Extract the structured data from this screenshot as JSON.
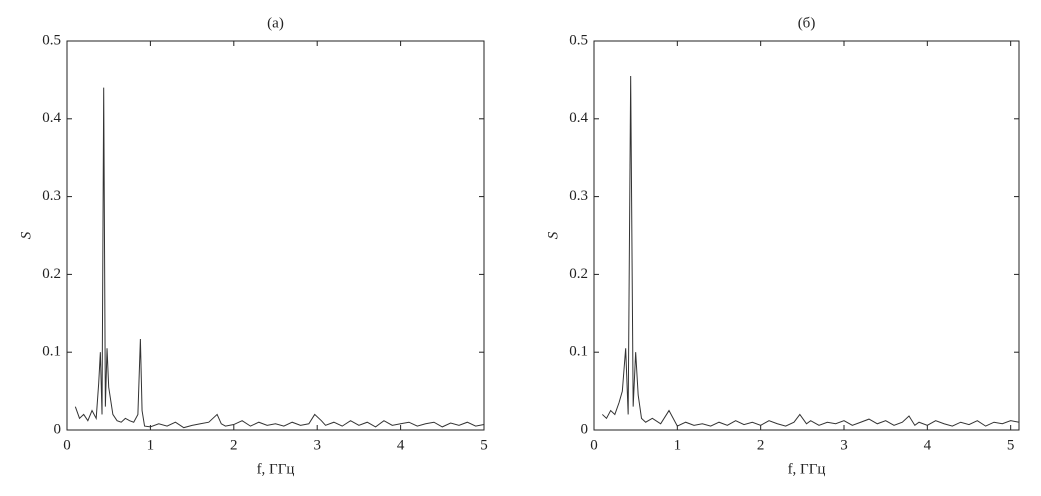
{
  "chart_data": [
    {
      "type": "line",
      "title": "(а)",
      "xlabel": "f, ГГц",
      "ylabel": "S",
      "xlim": [
        0,
        5
      ],
      "ylim": [
        0,
        0.5
      ],
      "xticks": [
        0,
        1,
        2,
        3,
        4,
        5
      ],
      "yticks": [
        0,
        0.1,
        0.2,
        0.3,
        0.4,
        0.5
      ],
      "x": [
        0.1,
        0.15,
        0.2,
        0.25,
        0.3,
        0.35,
        0.38,
        0.4,
        0.42,
        0.44,
        0.46,
        0.48,
        0.5,
        0.55,
        0.6,
        0.65,
        0.7,
        0.75,
        0.8,
        0.85,
        0.88,
        0.9,
        0.93,
        1.0,
        1.1,
        1.2,
        1.3,
        1.4,
        1.5,
        1.6,
        1.7,
        1.8,
        1.85,
        1.9,
        2.0,
        2.1,
        2.2,
        2.3,
        2.4,
        2.5,
        2.6,
        2.7,
        2.8,
        2.9,
        2.97,
        3.05,
        3.1,
        3.2,
        3.3,
        3.4,
        3.5,
        3.6,
        3.7,
        3.8,
        3.9,
        4.0,
        4.1,
        4.2,
        4.3,
        4.4,
        4.5,
        4.6,
        4.7,
        4.8,
        4.9,
        5.0
      ],
      "series": [
        {
          "color": "#333333",
          "values": [
            0.03,
            0.015,
            0.02,
            0.012,
            0.025,
            0.015,
            0.06,
            0.1,
            0.02,
            0.44,
            0.03,
            0.105,
            0.055,
            0.02,
            0.012,
            0.01,
            0.015,
            0.012,
            0.01,
            0.02,
            0.117,
            0.025,
            0.005,
            0.004,
            0.008,
            0.005,
            0.01,
            0.003,
            0.006,
            0.008,
            0.01,
            0.02,
            0.008,
            0.005,
            0.007,
            0.012,
            0.005,
            0.01,
            0.006,
            0.008,
            0.005,
            0.01,
            0.006,
            0.008,
            0.02,
            0.012,
            0.006,
            0.01,
            0.005,
            0.012,
            0.006,
            0.01,
            0.004,
            0.012,
            0.006,
            0.008,
            0.01,
            0.005,
            0.008,
            0.01,
            0.004,
            0.009,
            0.006,
            0.01,
            0.005,
            0.007
          ]
        }
      ]
    },
    {
      "type": "line",
      "title": "(б)",
      "xlabel": "f, ГГц",
      "ylabel": "S",
      "xlim": [
        0,
        5.1
      ],
      "ylim": [
        0,
        0.5
      ],
      "xticks": [
        0,
        1,
        2,
        3,
        4,
        5
      ],
      "yticks": [
        0,
        0.1,
        0.2,
        0.3,
        0.4,
        0.5
      ],
      "x": [
        0.1,
        0.15,
        0.2,
        0.25,
        0.3,
        0.34,
        0.38,
        0.41,
        0.44,
        0.47,
        0.5,
        0.53,
        0.57,
        0.62,
        0.7,
        0.8,
        0.9,
        1.0,
        1.1,
        1.2,
        1.3,
        1.4,
        1.5,
        1.6,
        1.7,
        1.8,
        1.9,
        2.0,
        2.1,
        2.2,
        2.3,
        2.4,
        2.47,
        2.55,
        2.6,
        2.7,
        2.8,
        2.9,
        3.0,
        3.1,
        3.2,
        3.3,
        3.4,
        3.5,
        3.6,
        3.7,
        3.78,
        3.85,
        3.9,
        4.0,
        4.1,
        4.2,
        4.3,
        4.4,
        4.5,
        4.6,
        4.7,
        4.8,
        4.9,
        5.0,
        5.1
      ],
      "series": [
        {
          "color": "#333333",
          "values": [
            0.02,
            0.015,
            0.025,
            0.02,
            0.035,
            0.05,
            0.105,
            0.02,
            0.455,
            0.03,
            0.1,
            0.045,
            0.015,
            0.01,
            0.015,
            0.008,
            0.025,
            0.005,
            0.01,
            0.006,
            0.008,
            0.005,
            0.01,
            0.006,
            0.012,
            0.007,
            0.01,
            0.006,
            0.012,
            0.008,
            0.005,
            0.01,
            0.02,
            0.008,
            0.012,
            0.006,
            0.01,
            0.008,
            0.012,
            0.006,
            0.01,
            0.014,
            0.008,
            0.012,
            0.006,
            0.01,
            0.018,
            0.006,
            0.01,
            0.006,
            0.012,
            0.008,
            0.005,
            0.01,
            0.007,
            0.012,
            0.005,
            0.01,
            0.008,
            0.012,
            0.01
          ]
        }
      ]
    }
  ]
}
